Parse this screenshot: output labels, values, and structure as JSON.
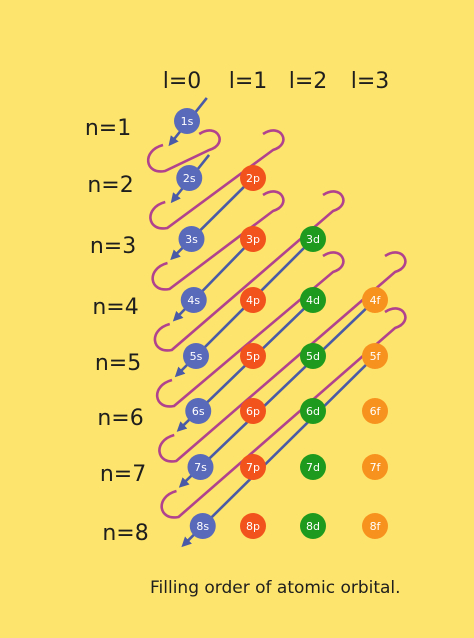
{
  "title": "",
  "caption": "Filling order of atomic orbital.",
  "l_labels": [
    "l=0",
    "l=1",
    "l=2",
    "l=3"
  ],
  "n_labels": [
    "n=1",
    "n=2",
    "n=3",
    "n=4",
    "n=5",
    "n=6",
    "n=7",
    "n=8"
  ],
  "orbitals": [
    {
      "label": "1s",
      "n": 1,
      "l": 0
    },
    {
      "label": "2s",
      "n": 2,
      "l": 0
    },
    {
      "label": "2p",
      "n": 2,
      "l": 1
    },
    {
      "label": "3s",
      "n": 3,
      "l": 0
    },
    {
      "label": "3p",
      "n": 3,
      "l": 1
    },
    {
      "label": "3d",
      "n": 3,
      "l": 2
    },
    {
      "label": "4s",
      "n": 4,
      "l": 0
    },
    {
      "label": "4p",
      "n": 4,
      "l": 1
    },
    {
      "label": "4d",
      "n": 4,
      "l": 2
    },
    {
      "label": "4f",
      "n": 4,
      "l": 3
    },
    {
      "label": "5s",
      "n": 5,
      "l": 0
    },
    {
      "label": "5p",
      "n": 5,
      "l": 1
    },
    {
      "label": "5d",
      "n": 5,
      "l": 2
    },
    {
      "label": "5f",
      "n": 5,
      "l": 3
    },
    {
      "label": "6s",
      "n": 6,
      "l": 0
    },
    {
      "label": "6p",
      "n": 6,
      "l": 1
    },
    {
      "label": "6d",
      "n": 6,
      "l": 2
    },
    {
      "label": "6f",
      "n": 6,
      "l": 3
    },
    {
      "label": "7s",
      "n": 7,
      "l": 0
    },
    {
      "label": "7p",
      "n": 7,
      "l": 1
    },
    {
      "label": "7d",
      "n": 7,
      "l": 2
    },
    {
      "label": "7f",
      "n": 7,
      "l": 3
    },
    {
      "label": "8s",
      "n": 8,
      "l": 0
    },
    {
      "label": "8p",
      "n": 8,
      "l": 1
    },
    {
      "label": "8d",
      "n": 8,
      "l": 2
    },
    {
      "label": "8f",
      "n": 8,
      "l": 3
    }
  ],
  "colors": {
    "background": "#fde46c",
    "s": "#5a6aba",
    "p": "#f2531c",
    "d": "#1e9a1e",
    "f": "#f7921e",
    "forward_line": "#4a5aa6",
    "return_line": "#b0428e",
    "text": "#1e1e1e"
  }
}
